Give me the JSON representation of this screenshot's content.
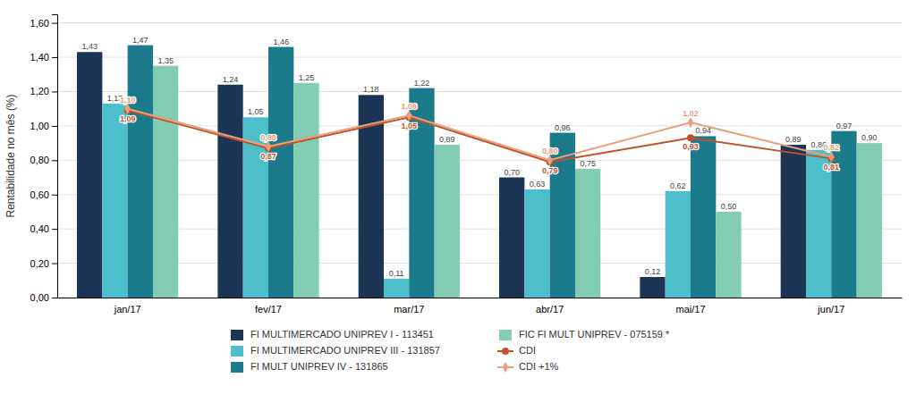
{
  "chart_data": {
    "type": "bar",
    "y_label": "Rentabilidade no mês (%)",
    "categories": [
      "jan/17",
      "fev/17",
      "mar/17",
      "abr/17",
      "mai/17",
      "jun/17"
    ],
    "ylim": [
      0.0,
      1.65
    ],
    "yticks": [
      {
        "value": 0.0,
        "label": "0,00"
      },
      {
        "value": 0.2,
        "label": "0,20"
      },
      {
        "value": 0.4,
        "label": "0,40"
      },
      {
        "value": 0.6,
        "label": "0,60"
      },
      {
        "value": 0.8,
        "label": "0,80"
      },
      {
        "value": 1.0,
        "label": "1,00"
      },
      {
        "value": 1.2,
        "label": "1,20"
      },
      {
        "value": 1.4,
        "label": "1,40"
      },
      {
        "value": 1.6,
        "label": "1,60"
      }
    ],
    "grid": true,
    "legend": "bottom",
    "data_labels": true,
    "series": [
      {
        "name": "FI MULTIMERCADO UNIPREV I - 113451",
        "type": "bar",
        "color": "#1c3557",
        "values": [
          1.43,
          1.24,
          1.18,
          0.7,
          0.12,
          0.89
        ],
        "value_labels": [
          "1,43",
          "1,24",
          "1,18",
          "0,70",
          "0,12",
          "0,89"
        ]
      },
      {
        "name": "FI MULTIMERCADO UNIPREV III - 131857",
        "type": "bar",
        "color": "#4dbfcc",
        "values": [
          1.13,
          1.05,
          0.11,
          0.63,
          0.62,
          0.86
        ],
        "value_labels": [
          "1,13",
          "1,05",
          "0,11",
          "0,63",
          "0,62",
          "0,86"
        ]
      },
      {
        "name": "FI MULT UNIPREV IV - 131865",
        "type": "bar",
        "color": "#1b7a8c",
        "values": [
          1.47,
          1.46,
          1.22,
          0.96,
          0.94,
          0.97
        ],
        "value_labels": [
          "1,47",
          "1,46",
          "1,22",
          "0,96",
          "0,94",
          "0,97"
        ]
      },
      {
        "name": "FIC FI MULT UNIPREV - 075159 *",
        "type": "bar",
        "color": "#82cdb4",
        "values": [
          1.35,
          1.25,
          0.89,
          0.75,
          0.5,
          0.9
        ],
        "value_labels": [
          "1,35",
          "1,25",
          "0,89",
          "0,75",
          "0,50",
          "0,90"
        ]
      },
      {
        "name": "CDI",
        "type": "line",
        "marker": "circle",
        "color": "#c0522a",
        "values": [
          1.09,
          0.87,
          1.05,
          0.79,
          0.93,
          0.81
        ],
        "value_labels": [
          "1,09",
          "0,87",
          "1,05",
          "0,79",
          "0,93",
          "0,81"
        ]
      },
      {
        "name": "CDI +1%",
        "type": "line",
        "marker": "diamond",
        "color": "#e8a07a",
        "values": [
          1.1,
          0.88,
          1.06,
          0.8,
          1.02,
          0.82
        ],
        "value_labels": [
          "1,10",
          "0,88",
          "1,06",
          "0,80",
          "1,02",
          "0,82"
        ]
      }
    ]
  }
}
